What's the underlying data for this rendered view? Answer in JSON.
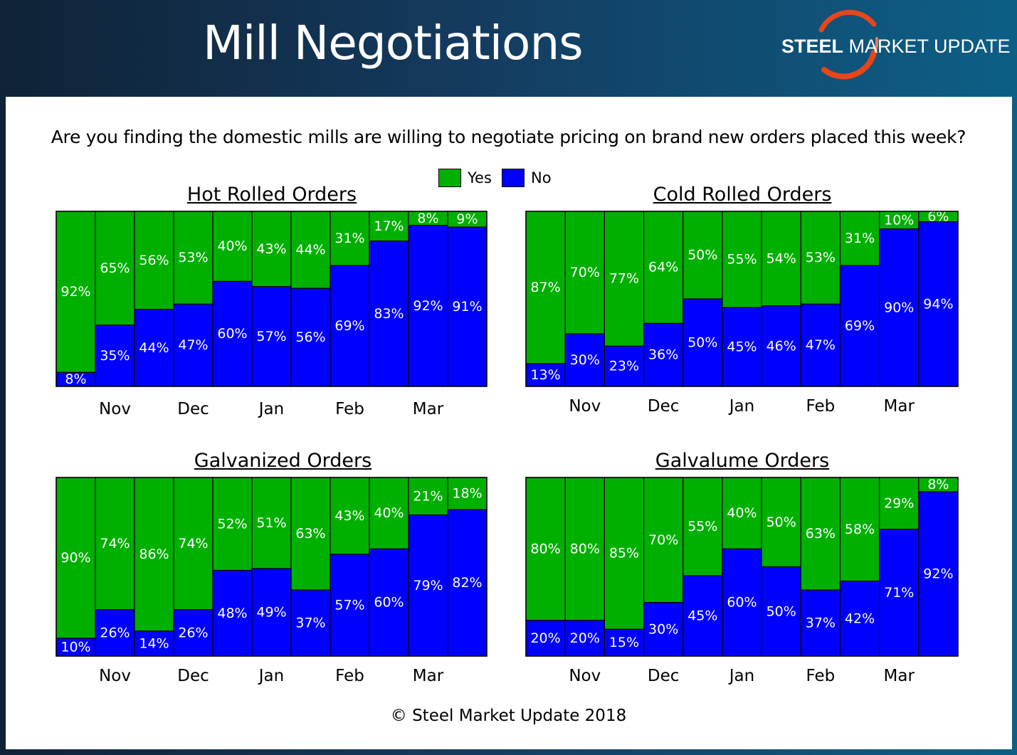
{
  "header": {
    "title": "Mill Negotiations",
    "logo": {
      "bold": "STEEL",
      "regular": " MARKET UPDATE"
    }
  },
  "question": "Are you finding the domestic mills are willing to negotiate pricing on brand new orders placed this week?",
  "legend": [
    {
      "label": "Yes",
      "color": "#00b000"
    },
    {
      "label": "No",
      "color": "#0000ff"
    }
  ],
  "colors": {
    "yes": "#00b000",
    "no": "#0000ff",
    "accent": "#e8451b"
  },
  "copyright": "© Steel Market Update 2018",
  "chart_data": [
    {
      "type": "bar",
      "stacked": true,
      "title": "Hot Rolled Orders",
      "x_labels": [
        "Nov",
        "Dec",
        "Jan",
        "Feb",
        "Mar"
      ],
      "series": [
        {
          "name": "No",
          "values": [
            8,
            35,
            44,
            47,
            60,
            57,
            56,
            69,
            83,
            92,
            91
          ]
        },
        {
          "name": "Yes",
          "values": [
            92,
            65,
            56,
            53,
            40,
            43,
            44,
            31,
            17,
            8,
            9
          ]
        }
      ],
      "ylim": [
        0,
        100
      ]
    },
    {
      "type": "bar",
      "stacked": true,
      "title": "Cold Rolled Orders",
      "x_labels": [
        "Nov",
        "Dec",
        "Jan",
        "Feb",
        "Mar"
      ],
      "series": [
        {
          "name": "No",
          "values": [
            13,
            30,
            23,
            36,
            50,
            45,
            46,
            47,
            69,
            90,
            94
          ]
        },
        {
          "name": "Yes",
          "values": [
            87,
            70,
            77,
            64,
            50,
            55,
            54,
            53,
            31,
            10,
            6
          ]
        }
      ],
      "ylim": [
        0,
        100
      ]
    },
    {
      "type": "bar",
      "stacked": true,
      "title": "Galvanized Orders",
      "x_labels": [
        "Nov",
        "Dec",
        "Jan",
        "Feb",
        "Mar"
      ],
      "series": [
        {
          "name": "No",
          "values": [
            10,
            26,
            14,
            26,
            48,
            49,
            37,
            57,
            60,
            79,
            82
          ]
        },
        {
          "name": "Yes",
          "values": [
            90,
            74,
            86,
            74,
            52,
            51,
            63,
            43,
            40,
            21,
            18
          ]
        }
      ],
      "ylim": [
        0,
        100
      ]
    },
    {
      "type": "bar",
      "stacked": true,
      "title": "Galvalume Orders",
      "x_labels": [
        "Nov",
        "Dec",
        "Jan",
        "Feb",
        "Mar"
      ],
      "series": [
        {
          "name": "No",
          "values": [
            20,
            20,
            15,
            30,
            45,
            60,
            50,
            37,
            42,
            71,
            92
          ]
        },
        {
          "name": "Yes",
          "values": [
            80,
            80,
            85,
            70,
            55,
            40,
            50,
            63,
            58,
            29,
            8
          ]
        }
      ],
      "ylim": [
        0,
        100
      ]
    }
  ]
}
